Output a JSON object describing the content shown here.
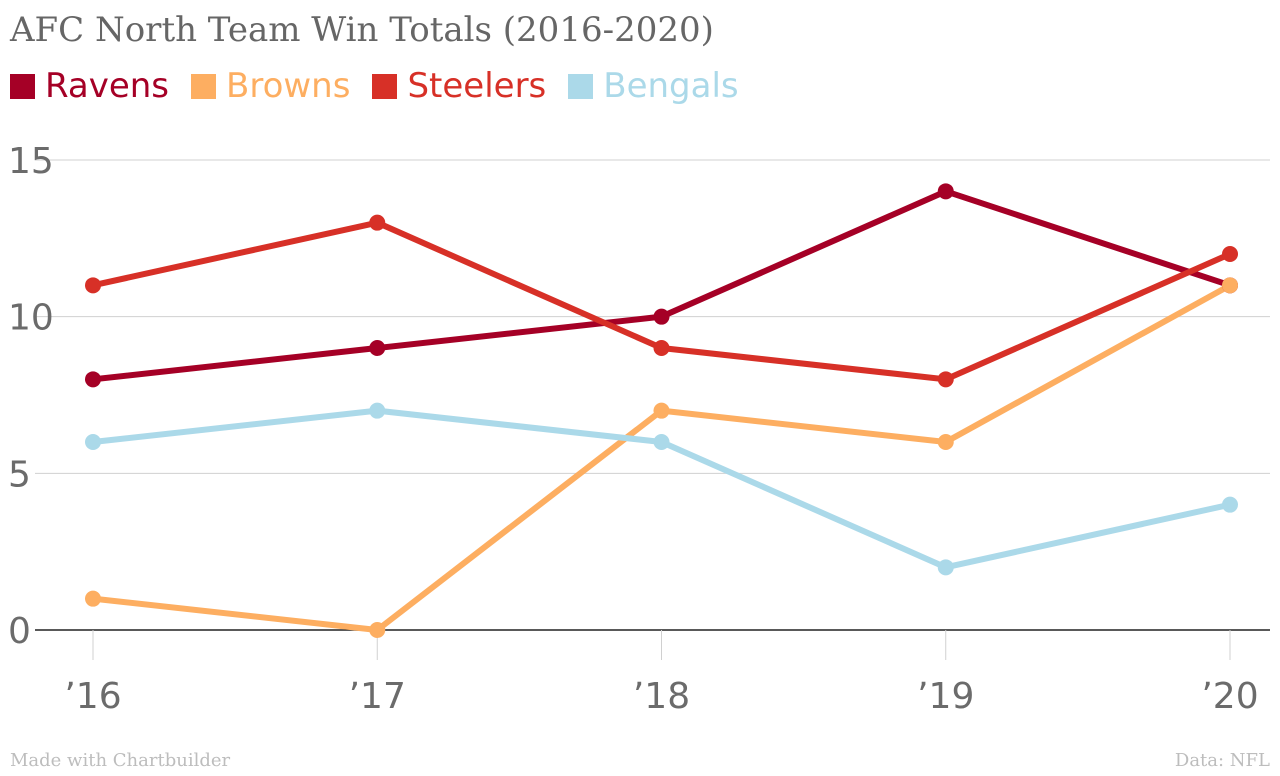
{
  "chart_data": {
    "type": "line",
    "title": "AFC North Team Win Totals (2016-2020)",
    "categories": [
      "’16",
      "’17",
      "’18",
      "’19",
      "’20"
    ],
    "series": [
      {
        "name": "Ravens",
        "color": "#a50026",
        "values": [
          8,
          9,
          10,
          14,
          11
        ]
      },
      {
        "name": "Browns",
        "color": "#fdae61",
        "values": [
          1,
          0,
          7,
          6,
          11
        ]
      },
      {
        "name": "Steelers",
        "color": "#d73027",
        "values": [
          11,
          13,
          9,
          8,
          12
        ]
      },
      {
        "name": "Bengals",
        "color": "#abd9e9",
        "values": [
          6,
          7,
          6,
          2,
          4
        ]
      }
    ],
    "ylim": [
      0,
      15
    ],
    "yticks": [
      "0",
      "5",
      "10",
      "15"
    ],
    "xlabel": "",
    "ylabel": "",
    "grid": true,
    "legend_position": "top-left"
  },
  "footer": {
    "left": "Made with Chartbuilder",
    "right": "Data: NFL"
  }
}
